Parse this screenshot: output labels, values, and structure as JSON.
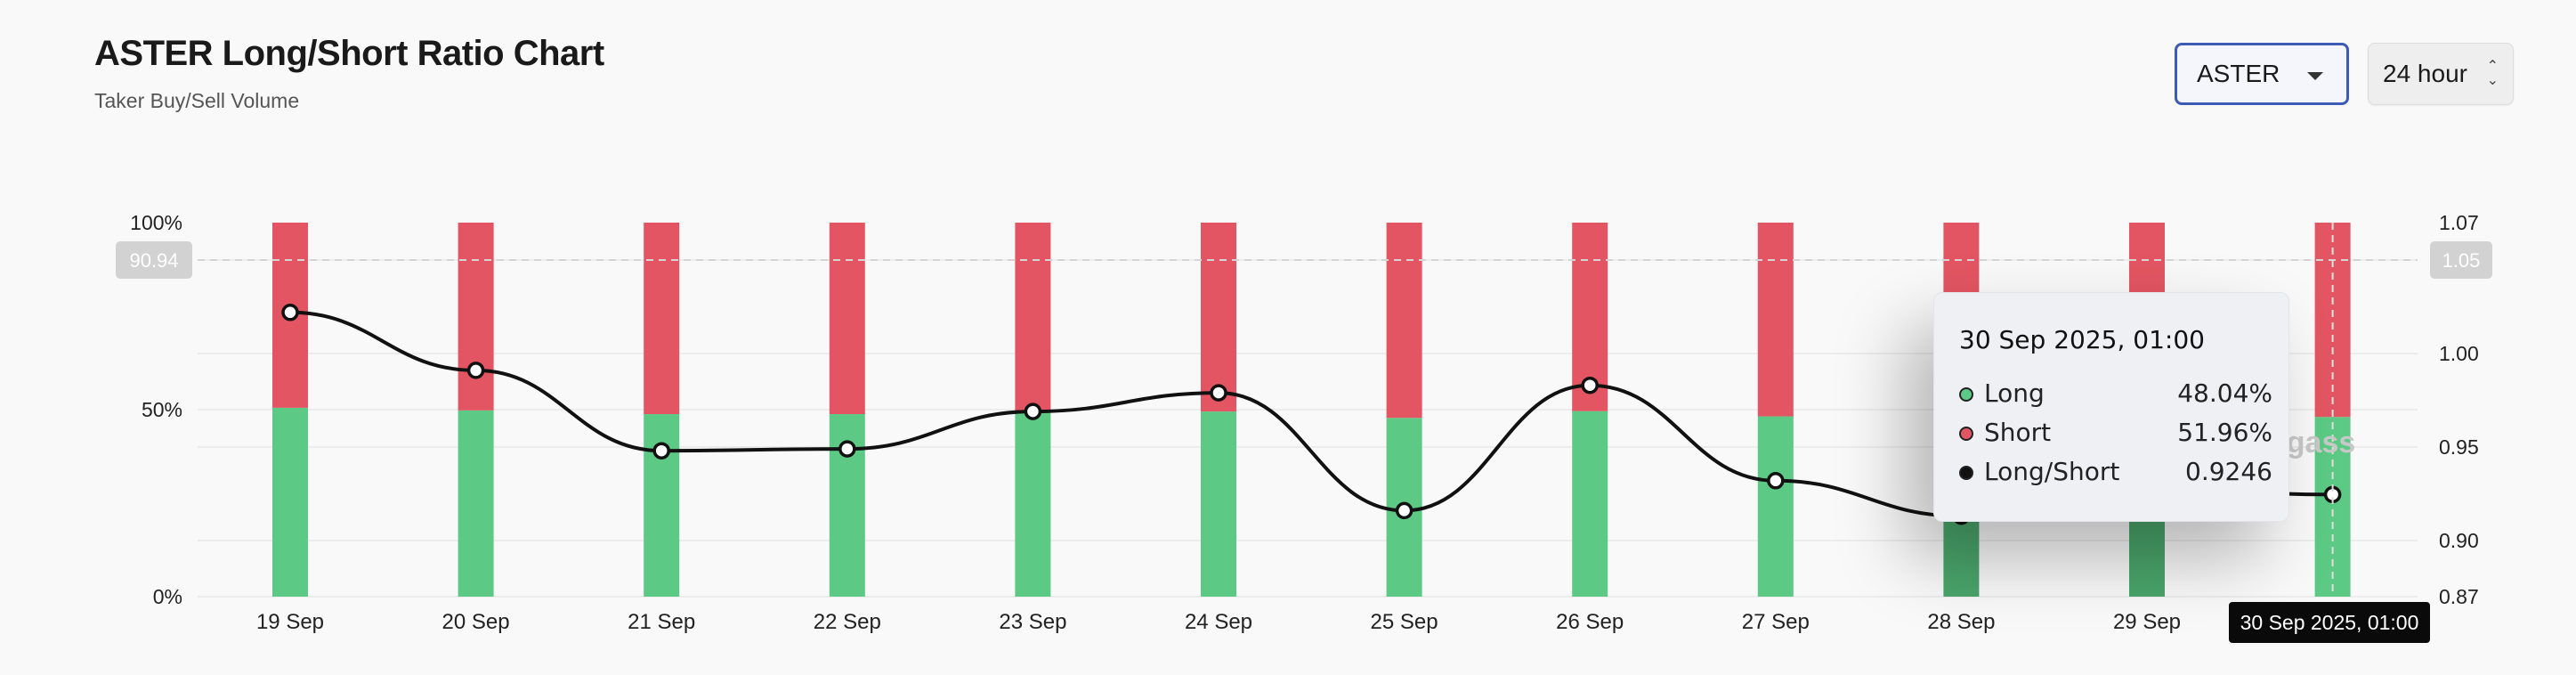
{
  "header": {
    "title": "ASTER Long/Short Ratio Chart",
    "subtitle": "Taker Buy/Sell Volume"
  },
  "controls": {
    "symbol_value": "ASTER",
    "period_value": "24 hour"
  },
  "colors": {
    "long": "#5cc985",
    "short": "#e35562",
    "ratio_line": "#111111",
    "accent": "#3b5bb5"
  },
  "crosshair": {
    "left_axis_value": "90.94",
    "right_axis_value": "1.05",
    "date_label": "30 Sep 2025, 01:00"
  },
  "tooltip": {
    "title": "30 Sep 2025, 01:00",
    "long_label": "Long",
    "long_value": "48.04%",
    "short_label": "Short",
    "short_value": "51.96%",
    "ratio_label": "Long/Short",
    "ratio_value": "0.9246"
  },
  "watermark": "ngass",
  "chart_data": {
    "type": "bar",
    "categories": [
      "19 Sep",
      "20 Sep",
      "21 Sep",
      "22 Sep",
      "23 Sep",
      "24 Sep",
      "25 Sep",
      "26 Sep",
      "27 Sep",
      "28 Sep",
      "29 Sep",
      "30 Sep"
    ],
    "series": [
      {
        "name": "Long",
        "values": [
          50.5,
          49.8,
          48.8,
          48.8,
          49.7,
          49.5,
          47.8,
          49.6,
          48.2,
          47.0,
          47.5,
          48.04
        ]
      },
      {
        "name": "Short",
        "values": [
          49.5,
          50.2,
          51.2,
          51.2,
          50.3,
          50.5,
          52.2,
          50.4,
          51.8,
          53.0,
          52.5,
          51.96
        ]
      },
      {
        "name": "Long/Short",
        "axis": "right",
        "values": [
          1.022,
          0.991,
          0.948,
          0.949,
          0.969,
          0.979,
          0.916,
          0.983,
          0.932,
          0.913,
          0.928,
          0.9246
        ]
      }
    ],
    "left_axis": {
      "ticks": [
        "0%",
        "50%",
        "100%"
      ],
      "ylim": [
        0,
        100
      ]
    },
    "right_axis": {
      "ticks": [
        "0.87",
        "0.90",
        "0.95",
        "1.00",
        "1.05",
        "1.07"
      ],
      "ylim": [
        0.87,
        1.07
      ]
    },
    "grid": true,
    "legend": "none",
    "stacked": true
  }
}
